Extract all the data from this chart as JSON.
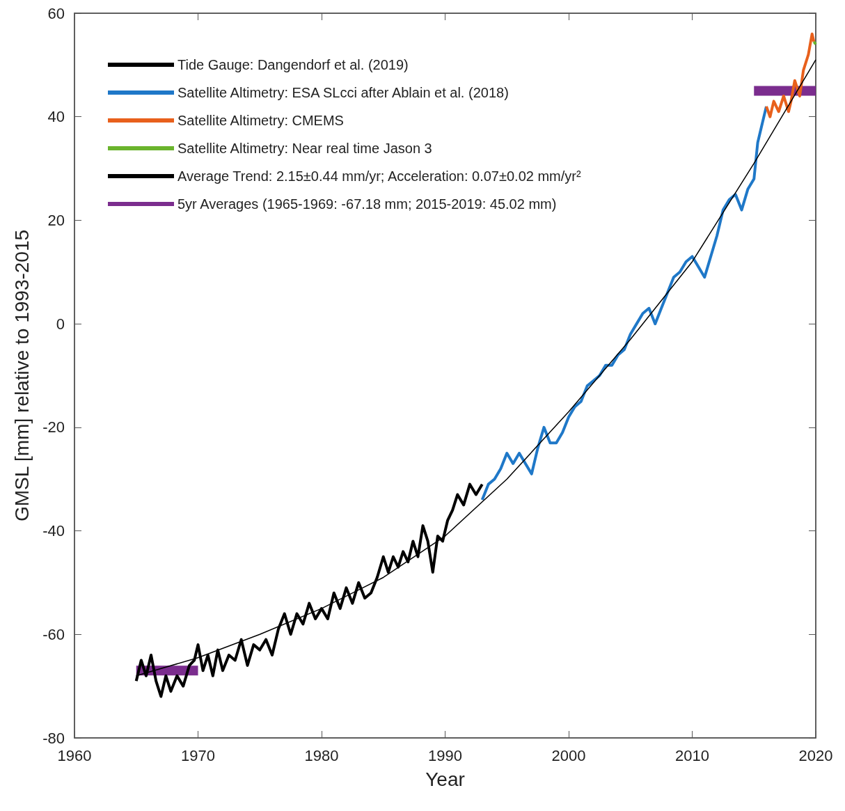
{
  "chart_data": {
    "type": "line",
    "xlabel": "Year",
    "ylabel": "GMSL [mm] relative to 1993-2015",
    "xlim": [
      1960,
      2020
    ],
    "xticks": [
      1960,
      1970,
      1980,
      1990,
      2000,
      2010,
      2020
    ],
    "ylim": [
      -80,
      60
    ],
    "yticks": [
      -80,
      -60,
      -40,
      -20,
      0,
      20,
      40,
      60
    ],
    "grid": false,
    "legend": "top left",
    "marker": "none",
    "line_style": "solid",
    "series": [
      {
        "name": "Tide Gauge: Dangendorf et al. (2019)",
        "color": "#000000",
        "x": [
          1965.0,
          1965.4,
          1965.8,
          1966.2,
          1966.6,
          1967.0,
          1967.4,
          1967.8,
          1968.3,
          1968.8,
          1969.3,
          1969.7,
          1970.0,
          1970.4,
          1970.8,
          1971.2,
          1971.6,
          1972.0,
          1972.5,
          1973.0,
          1973.5,
          1974.0,
          1974.5,
          1975.0,
          1975.5,
          1976.0,
          1976.5,
          1977.0,
          1977.5,
          1978.0,
          1978.5,
          1979.0,
          1979.5,
          1980.0,
          1980.5,
          1981.0,
          1981.5,
          1982.0,
          1982.5,
          1983.0,
          1983.5,
          1984.0,
          1984.5,
          1985.0,
          1985.4,
          1985.8,
          1986.2,
          1986.6,
          1987.0,
          1987.4,
          1987.8,
          1988.2,
          1988.6,
          1989.0,
          1989.4,
          1989.8,
          1990.2,
          1990.6,
          1991.0,
          1991.5,
          1992.0,
          1992.5,
          1993.0
        ],
        "values": [
          -69,
          -65,
          -68,
          -64,
          -69,
          -72,
          -68,
          -71,
          -68,
          -70,
          -66,
          -65,
          -62,
          -67,
          -64,
          -68,
          -63,
          -67,
          -64,
          -65,
          -61,
          -66,
          -62,
          -63,
          -61,
          -64,
          -59,
          -56,
          -60,
          -56,
          -58,
          -54,
          -57,
          -55,
          -57,
          -52,
          -55,
          -51,
          -54,
          -50,
          -53,
          -52,
          -49,
          -45,
          -48,
          -45,
          -47,
          -44,
          -46,
          -42,
          -45,
          -39,
          -42,
          -48,
          -41,
          -42,
          -38,
          -36,
          -33,
          -35,
          -31,
          -33,
          -31
        ]
      },
      {
        "name": "Satellite Altimetry: ESA SLcci after Ablain et al. (2018)",
        "color": "#1f78c8",
        "x": [
          1993.0,
          1993.5,
          1994.0,
          1994.5,
          1995.0,
          1995.5,
          1996.0,
          1996.5,
          1997.0,
          1997.5,
          1998.0,
          1998.5,
          1999.0,
          1999.5,
          2000.0,
          2000.5,
          2001.0,
          2001.5,
          2002.0,
          2002.5,
          2003.0,
          2003.5,
          2004.0,
          2004.5,
          2005.0,
          2005.5,
          2006.0,
          2006.5,
          2007.0,
          2007.5,
          2008.0,
          2008.5,
          2009.0,
          2009.5,
          2010.0,
          2010.5,
          2011.0,
          2011.5,
          2012.0,
          2012.5,
          2013.0,
          2013.5,
          2014.0,
          2014.5,
          2015.0,
          2015.3,
          2015.6,
          2016.0
        ],
        "values": [
          -34,
          -31,
          -30,
          -28,
          -25,
          -27,
          -25,
          -27,
          -29,
          -24,
          -20,
          -23,
          -23,
          -21,
          -18,
          -16,
          -15,
          -12,
          -11,
          -10,
          -8,
          -8,
          -6,
          -5,
          -2,
          0,
          2,
          3,
          0,
          3,
          6,
          9,
          10,
          12,
          13,
          11,
          9,
          13,
          17,
          22,
          24,
          25,
          22,
          26,
          28,
          35,
          38,
          42
        ]
      },
      {
        "name": "Satellite Altimetry: CMEMS",
        "color": "#e8601c",
        "x": [
          2016.0,
          2016.3,
          2016.6,
          2017.0,
          2017.4,
          2017.8,
          2018.0,
          2018.3,
          2018.7,
          2019.0,
          2019.4,
          2019.7,
          2019.85
        ],
        "values": [
          42,
          40,
          43,
          41,
          44,
          41,
          43,
          47,
          44,
          49,
          52,
          56,
          54.5
        ]
      },
      {
        "name": "Satellite Altimetry: Near real time Jason 3",
        "color": "#6ab42d",
        "x": [
          2019.85,
          2020.0
        ],
        "values": [
          54.5,
          54
        ]
      },
      {
        "name": "Average Trend: 2.15±0.44 mm/yr; Acceleration: 0.07±0.02 mm/yr²",
        "color": "#000000",
        "x": [
          1965,
          1970,
          1975,
          1980,
          1985,
          1990,
          1995,
          2000,
          2005,
          2010,
          2015,
          2020
        ],
        "values": [
          -68,
          -64.5,
          -60,
          -55,
          -49,
          -41,
          -30,
          -17,
          -3,
          12,
          31,
          51
        ]
      },
      {
        "name": "5yr Averages (1965-1969: -67.18 mm; 2015-2019: 45.02 mm)",
        "color": "#7b2d8e",
        "x": [
          1965,
          1970,
          1992,
          2015,
          2020
        ],
        "values": [
          -67,
          -67,
          null,
          45,
          45
        ]
      }
    ]
  }
}
